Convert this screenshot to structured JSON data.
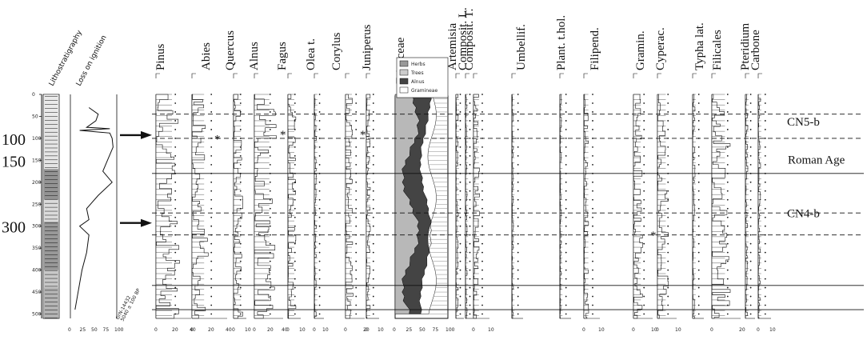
{
  "chart_data": {
    "type": "pollen-diagram",
    "y_axis": {
      "ticks": [
        0,
        50,
        100,
        150,
        200,
        250,
        300,
        350,
        400,
        450,
        500
      ],
      "range": [
        0,
        510
      ]
    },
    "big_depth_labels": [
      "100",
      "150",
      "300"
    ],
    "columns_left": [
      {
        "label": "Lithostratigraphy"
      },
      {
        "label": "Loss on ignition",
        "ticks": [
          "0",
          "25",
          "50",
          "75",
          "100"
        ],
        "profile": [
          [
            40,
            30
          ],
          [
            60,
            45
          ],
          [
            55,
            60
          ],
          [
            35,
            75
          ],
          [
            85,
            78
          ],
          [
            20,
            82
          ],
          [
            85,
            88
          ],
          [
            90,
            100
          ],
          [
            92,
            120
          ],
          [
            80,
            150
          ],
          [
            70,
            175
          ],
          [
            90,
            200
          ],
          [
            60,
            230
          ],
          [
            35,
            260
          ],
          [
            40,
            285
          ],
          [
            20,
            300
          ],
          [
            40,
            320
          ],
          [
            35,
            360
          ],
          [
            25,
            400
          ],
          [
            20,
            430
          ],
          [
            15,
            460
          ],
          [
            10,
            490
          ]
        ]
      }
    ],
    "dating_label": "GrN-14432\n5040 ± 100 BP",
    "taxa": [
      {
        "name": "Pinus",
        "ticks": [
          "0",
          "20",
          "40"
        ]
      },
      {
        "name": "Abies",
        "ticks": [
          "0",
          "20",
          "40"
        ]
      },
      {
        "name": "Quercus",
        "ticks": [
          "0",
          "10"
        ]
      },
      {
        "name": "Alnus",
        "ticks": [
          "0",
          "20",
          "40"
        ]
      },
      {
        "name": "Fagus",
        "ticks": [
          "0",
          "10"
        ]
      },
      {
        "name": "Olea t.",
        "ticks": [
          "0",
          "10"
        ]
      },
      {
        "name": "Corylus",
        "ticks": [
          "0",
          "20"
        ]
      },
      {
        "name": "Juniperus",
        "ticks": [
          "0",
          "10"
        ]
      },
      {
        "name": "Ericaceae",
        "ticks": []
      },
      {
        "name": "Artemisia",
        "ticks": []
      },
      {
        "name": "Composit. L.",
        "ticks": []
      },
      {
        "name": "Composit. T.",
        "ticks": [
          "0",
          "10"
        ]
      },
      {
        "name": "Umbellif.",
        "ticks": []
      },
      {
        "name": "Plant. t.hol.",
        "ticks": []
      },
      {
        "name": "Filipend.",
        "ticks": [
          "0",
          "10"
        ]
      },
      {
        "name": "Gramin.",
        "ticks": [
          "0",
          "10"
        ]
      },
      {
        "name": "Cyperac.",
        "ticks": [
          "0",
          "10"
        ]
      },
      {
        "name": "Typha lat.",
        "ticks": []
      },
      {
        "name": "Filicales",
        "ticks": [
          "0",
          "20"
        ]
      },
      {
        "name": "Pteridium",
        "ticks": []
      },
      {
        "name": "Carbone",
        "ticks": [
          "0",
          "10"
        ]
      }
    ],
    "summary": {
      "legend": [
        "Herbs",
        "Trees",
        "Alnus",
        "Gramineae"
      ],
      "ticks": [
        "0",
        "25",
        "50",
        "75",
        "100"
      ]
    },
    "zones": [
      {
        "label": "CN5-b",
        "depth": 100
      },
      {
        "label": "Roman Age",
        "depth": 180
      },
      {
        "label": "CN4-b",
        "depth": 300
      }
    ],
    "arrows_at_depths": [
      100,
      300
    ],
    "zone_lines_solid": [
      180,
      435,
      490
    ],
    "zone_lines_dashed": [
      45,
      100,
      270,
      320
    ]
  }
}
